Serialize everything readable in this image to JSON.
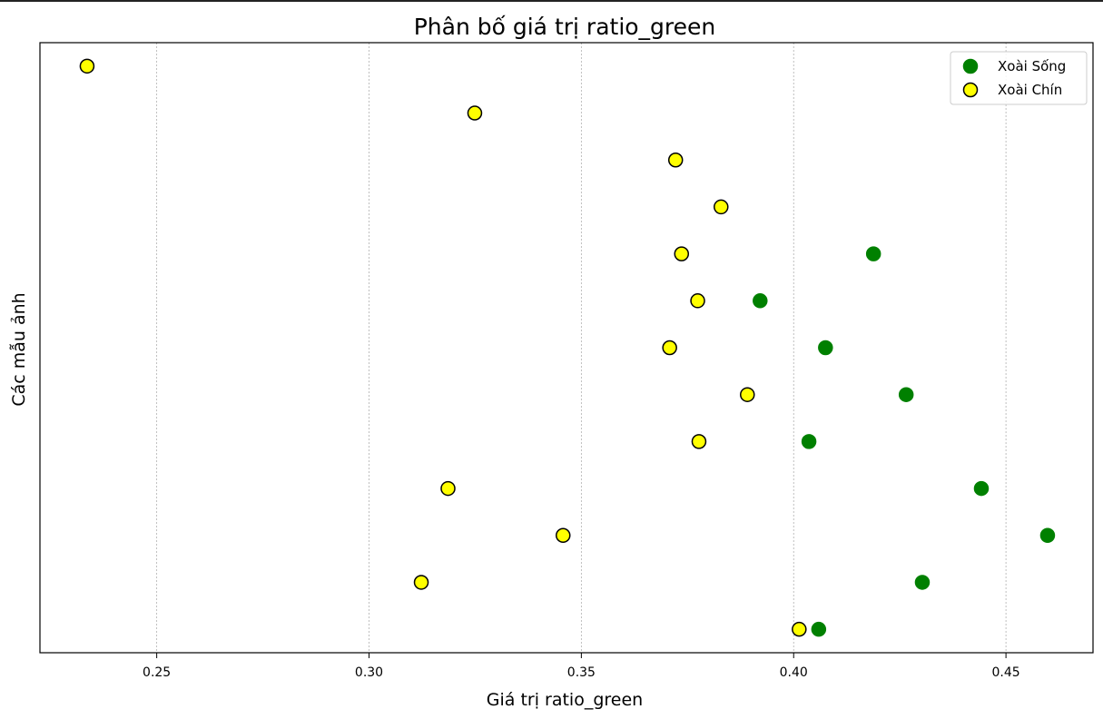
{
  "chart_data": {
    "type": "scatter",
    "title": "Phân bố giá trị ratio_green",
    "xlabel": "Giá trị ratio_green",
    "ylabel": "Các mẫu ảnh",
    "xlim": [
      0.2225,
      0.4705
    ],
    "ylim": [
      -0.5,
      12.5
    ],
    "xticks": [
      0.25,
      0.3,
      0.35,
      0.4,
      0.45
    ],
    "xtick_labels": [
      "0.25",
      "0.30",
      "0.35",
      "0.40",
      "0.45"
    ],
    "grid": "x",
    "legend_position": "top-right",
    "series": [
      {
        "name": "Xoài Sống",
        "color": "#008000",
        "edge": "#008000",
        "points": [
          {
            "x": 0.4188,
            "y": 8
          },
          {
            "x": 0.3921,
            "y": 7
          },
          {
            "x": 0.4075,
            "y": 6
          },
          {
            "x": 0.4265,
            "y": 5
          },
          {
            "x": 0.4036,
            "y": 4
          },
          {
            "x": 0.4442,
            "y": 3
          },
          {
            "x": 0.4598,
            "y": 2
          },
          {
            "x": 0.4303,
            "y": 1
          },
          {
            "x": 0.4059,
            "y": 0
          }
        ]
      },
      {
        "name": "Xoài Chín",
        "color": "#ffff00",
        "edge": "#000000",
        "points": [
          {
            "x": 0.2336,
            "y": 12
          },
          {
            "x": 0.3249,
            "y": 11
          },
          {
            "x": 0.3722,
            "y": 10
          },
          {
            "x": 0.3829,
            "y": 9
          },
          {
            "x": 0.3736,
            "y": 8
          },
          {
            "x": 0.3774,
            "y": 7
          },
          {
            "x": 0.3708,
            "y": 6
          },
          {
            "x": 0.3891,
            "y": 5
          },
          {
            "x": 0.3777,
            "y": 4
          },
          {
            "x": 0.3186,
            "y": 3
          },
          {
            "x": 0.3457,
            "y": 2
          },
          {
            "x": 0.3123,
            "y": 1
          },
          {
            "x": 0.4013,
            "y": 0
          }
        ]
      }
    ]
  }
}
